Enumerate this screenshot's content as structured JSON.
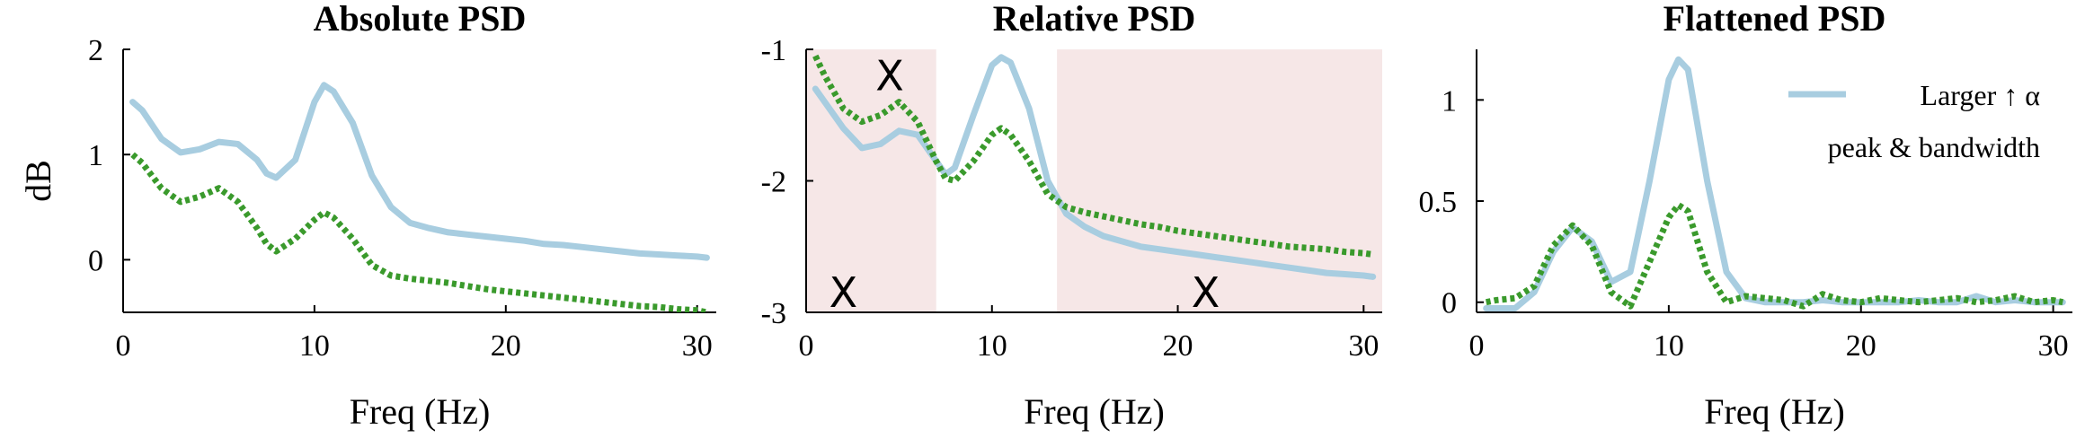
{
  "colors": {
    "series_solid": "#a8cde0",
    "series_dotted": "#3a9a2c",
    "shade": "#f6e7e7"
  },
  "chart_data": [
    {
      "type": "line",
      "title": "Absolute PSD",
      "xlabel": "Freq (Hz)",
      "ylabel": "dB",
      "xlim": [
        0,
        31
      ],
      "ylim": [
        -0.5,
        2.0
      ],
      "xticks": [
        0,
        10,
        20,
        30
      ],
      "yticks": [
        0,
        1,
        2
      ],
      "xtick_labels": [
        "0",
        "10",
        "20",
        "30"
      ],
      "ytick_labels": [
        "0",
        "1",
        "2"
      ],
      "grid": false,
      "series": [
        {
          "style": "solid",
          "x": [
            0.5,
            1,
            2,
            3,
            4,
            5,
            6,
            7,
            7.5,
            8,
            9,
            10,
            10.5,
            11,
            12,
            13,
            14,
            15,
            16,
            17,
            18,
            19,
            20,
            21,
            22,
            23,
            24,
            25,
            26,
            27,
            28,
            29,
            30,
            30.5
          ],
          "y": [
            1.5,
            1.42,
            1.15,
            1.02,
            1.05,
            1.12,
            1.1,
            0.95,
            0.82,
            0.78,
            0.95,
            1.5,
            1.66,
            1.6,
            1.3,
            0.8,
            0.5,
            0.35,
            0.3,
            0.26,
            0.24,
            0.22,
            0.2,
            0.18,
            0.15,
            0.14,
            0.12,
            0.1,
            0.08,
            0.06,
            0.05,
            0.04,
            0.03,
            0.02
          ]
        },
        {
          "style": "dotted",
          "x": [
            0.5,
            1,
            2,
            3,
            4,
            5,
            6,
            7,
            7.5,
            8,
            9,
            10,
            10.5,
            11,
            12,
            13,
            14,
            15,
            16,
            17,
            18,
            19,
            20,
            21,
            22,
            23,
            24,
            25,
            26,
            27,
            28,
            29,
            30,
            30.5
          ],
          "y": [
            1.0,
            0.92,
            0.68,
            0.55,
            0.6,
            0.68,
            0.55,
            0.3,
            0.15,
            0.08,
            0.2,
            0.38,
            0.45,
            0.4,
            0.2,
            -0.05,
            -0.15,
            -0.18,
            -0.2,
            -0.22,
            -0.25,
            -0.28,
            -0.3,
            -0.32,
            -0.34,
            -0.36,
            -0.38,
            -0.4,
            -0.42,
            -0.44,
            -0.45,
            -0.47,
            -0.48,
            -0.5
          ]
        }
      ]
    },
    {
      "type": "line",
      "title": "Relative PSD",
      "xlabel": "Freq (Hz)",
      "ylabel": "",
      "xlim": [
        0,
        31
      ],
      "ylim": [
        -3.0,
        -1.0
      ],
      "xticks": [
        0,
        10,
        20,
        30
      ],
      "yticks": [
        -3,
        -2,
        -1
      ],
      "xtick_labels": [
        "0",
        "10",
        "20",
        "30"
      ],
      "ytick_labels": [
        "-3",
        "-2",
        "-1"
      ],
      "grid": false,
      "shaded_regions": [
        [
          0,
          7
        ],
        [
          13.5,
          31
        ]
      ],
      "annotations": [
        {
          "text": "X",
          "x": 4.5,
          "y": -1.2
        },
        {
          "text": "X",
          "x": 2,
          "y": -2.85
        },
        {
          "text": "X",
          "x": 21.5,
          "y": -2.85
        }
      ],
      "series": [
        {
          "style": "solid",
          "x": [
            0.5,
            1,
            2,
            3,
            4,
            5,
            6,
            7,
            7.5,
            8,
            9,
            10,
            10.5,
            11,
            12,
            13,
            14,
            15,
            16,
            17,
            18,
            19,
            20,
            21,
            22,
            23,
            24,
            25,
            26,
            27,
            28,
            29,
            30,
            30.5
          ],
          "y": [
            -1.3,
            -1.4,
            -1.6,
            -1.75,
            -1.72,
            -1.62,
            -1.65,
            -1.85,
            -1.95,
            -1.9,
            -1.5,
            -1.12,
            -1.06,
            -1.1,
            -1.45,
            -2.0,
            -2.25,
            -2.35,
            -2.42,
            -2.46,
            -2.5,
            -2.52,
            -2.54,
            -2.56,
            -2.58,
            -2.6,
            -2.62,
            -2.64,
            -2.66,
            -2.68,
            -2.7,
            -2.71,
            -2.72,
            -2.73
          ]
        },
        {
          "style": "dotted",
          "x": [
            0.5,
            1,
            2,
            3,
            4,
            5,
            6,
            7,
            7.5,
            8,
            9,
            10,
            10.5,
            11,
            12,
            13,
            14,
            15,
            16,
            17,
            18,
            19,
            20,
            21,
            22,
            23,
            24,
            25,
            26,
            27,
            28,
            29,
            30,
            30.5
          ],
          "y": [
            -1.05,
            -1.2,
            -1.45,
            -1.55,
            -1.5,
            -1.4,
            -1.55,
            -1.85,
            -1.98,
            -2.0,
            -1.85,
            -1.65,
            -1.6,
            -1.65,
            -1.85,
            -2.1,
            -2.2,
            -2.24,
            -2.27,
            -2.3,
            -2.33,
            -2.35,
            -2.38,
            -2.4,
            -2.42,
            -2.44,
            -2.46,
            -2.48,
            -2.5,
            -2.51,
            -2.52,
            -2.54,
            -2.55,
            -2.56
          ]
        }
      ]
    },
    {
      "type": "line",
      "title": "Flattened PSD",
      "xlabel": "Freq (Hz)",
      "ylabel": "",
      "xlim": [
        0,
        31
      ],
      "ylim": [
        -0.05,
        1.25
      ],
      "xticks": [
        0,
        10,
        20,
        30
      ],
      "yticks": [
        0,
        0.5,
        1
      ],
      "xtick_labels": [
        "0",
        "10",
        "20",
        "30"
      ],
      "ytick_labels": [
        "0",
        "0.5",
        "1"
      ],
      "grid": false,
      "legend": {
        "placement": "top-right",
        "label_line1": "Larger ↑ α",
        "label_line2": "peak & bandwidth"
      },
      "series": [
        {
          "style": "solid",
          "x": [
            0.5,
            1,
            2,
            3,
            4,
            5,
            6,
            7,
            8,
            9,
            10,
            10.5,
            11,
            12,
            13,
            14,
            15,
            16,
            17,
            18,
            19,
            20,
            21,
            22,
            23,
            24,
            25,
            26,
            27,
            28,
            29,
            30,
            30.5
          ],
          "y": [
            -0.03,
            -0.03,
            -0.03,
            0.05,
            0.25,
            0.37,
            0.3,
            0.1,
            0.15,
            0.6,
            1.1,
            1.2,
            1.15,
            0.6,
            0.15,
            0.02,
            0.0,
            0.0,
            0.0,
            0.01,
            0.0,
            0.0,
            0.0,
            0.0,
            0.01,
            0.0,
            0.0,
            0.03,
            0.0,
            0.01,
            0.0,
            0.0,
            0.0
          ]
        },
        {
          "style": "dotted",
          "x": [
            0.5,
            1,
            2,
            3,
            4,
            5,
            6,
            7,
            8,
            9,
            10,
            10.5,
            11,
            12,
            13,
            14,
            15,
            16,
            17,
            18,
            19,
            20,
            21,
            22,
            23,
            24,
            25,
            26,
            27,
            28,
            29,
            30,
            30.5
          ],
          "y": [
            0.0,
            0.01,
            0.02,
            0.08,
            0.28,
            0.38,
            0.28,
            0.05,
            -0.02,
            0.2,
            0.42,
            0.48,
            0.45,
            0.15,
            0.0,
            0.03,
            0.02,
            0.01,
            -0.02,
            0.04,
            0.01,
            0.0,
            0.02,
            0.01,
            0.0,
            0.01,
            0.02,
            0.0,
            0.01,
            0.03,
            0.0,
            0.01,
            0.0
          ]
        }
      ]
    }
  ]
}
